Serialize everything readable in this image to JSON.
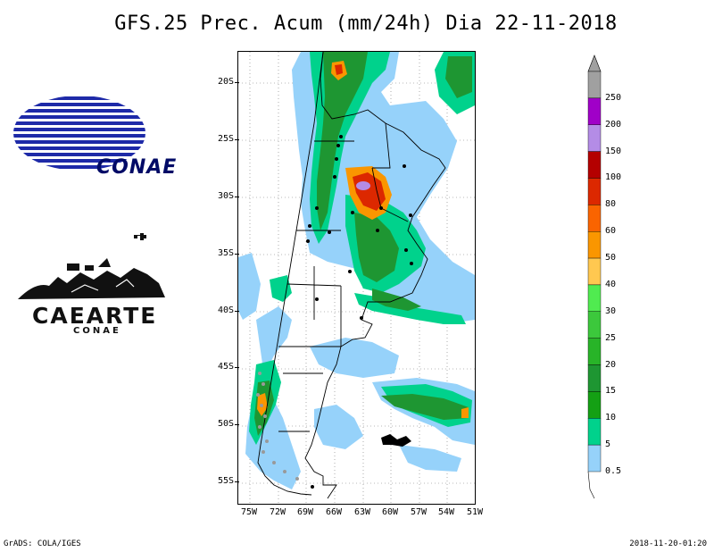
{
  "title": "GFS.25 Prec. Acum (mm/24h) Dia 22-11-2018",
  "map": {
    "lat_labels": [
      "20S",
      "25S",
      "30S",
      "35S",
      "40S",
      "45S",
      "50S",
      "55S"
    ],
    "lon_labels": [
      "75W",
      "72W",
      "69W",
      "66W",
      "63W",
      "60W",
      "57W",
      "54W",
      "51W"
    ]
  },
  "colorbar": {
    "labels": [
      "250",
      "200",
      "150",
      "100",
      "80",
      "60",
      "50",
      "40",
      "30",
      "25",
      "20",
      "15",
      "10",
      "5",
      "0.5"
    ],
    "colors": [
      "#a0a0a0",
      "#a000c8",
      "#b48ce6",
      "#b40000",
      "#dc2800",
      "#fa6400",
      "#fa9600",
      "#ffc850",
      "#50eb50",
      "#3cc83c",
      "#28b428",
      "#1e9632",
      "#14a014",
      "#00d28c",
      "#96d2fa"
    ]
  },
  "logos": {
    "conae": "CONAE",
    "caearte": "CAEARTE",
    "caearte_sub": "CONAE"
  },
  "footer": {
    "left": "GrADS: COLA/IGES",
    "right": "2018-11-20-01:20"
  }
}
